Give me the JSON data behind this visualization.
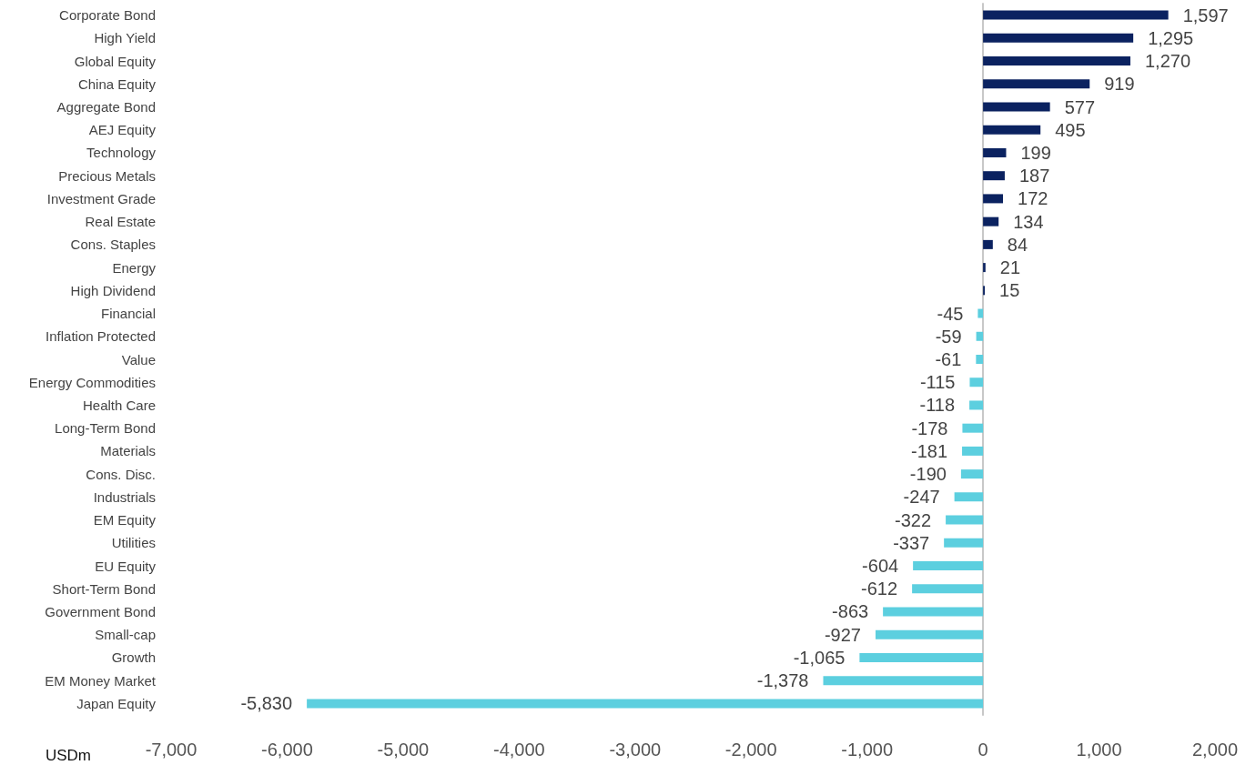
{
  "chart_data": {
    "type": "bar",
    "orientation": "horizontal",
    "xlabel": "USDm",
    "categories": [
      "Corporate Bond",
      "High Yield",
      "Global Equity",
      "China Equity",
      "Aggregate Bond",
      "AEJ Equity",
      "Technology",
      "Precious Metals",
      "Investment Grade",
      "Real Estate",
      "Cons. Staples",
      "Energy",
      "High Dividend",
      "Financial",
      "Inflation Protected",
      "Value",
      "Energy Commodities",
      "Health Care",
      "Long-Term Bond",
      "Materials",
      "Cons. Disc.",
      "Industrials",
      "EM Equity",
      "Utilities",
      "EU Equity",
      "Short-Term Bond",
      "Government Bond",
      "Small-cap",
      "Growth",
      "EM Money Market",
      "Japan Equity"
    ],
    "values": [
      1597,
      1295,
      1270,
      919,
      577,
      495,
      199,
      187,
      172,
      134,
      84,
      21,
      15,
      -45,
      -59,
      -61,
      -115,
      -118,
      -178,
      -181,
      -190,
      -247,
      -322,
      -337,
      -604,
      -612,
      -863,
      -927,
      -1065,
      -1378,
      -5830
    ],
    "value_labels": [
      "1,597",
      "1,295",
      "1,270",
      "919",
      "577",
      "495",
      "199",
      "187",
      "172",
      "134",
      "84",
      "21",
      "15",
      "-45",
      "-59",
      "-61",
      "-115",
      "-118",
      "-178",
      "-181",
      "-190",
      "-247",
      "-322",
      "-337",
      "-604",
      "-612",
      "-863",
      "-927",
      "-1,065",
      "-1,378",
      "-5,830"
    ],
    "colors": [
      "#0b2260",
      "#0b2260",
      "#0b2260",
      "#0b2260",
      "#0b2260",
      "#0b2260",
      "#0b2260",
      "#0b2260",
      "#0b2260",
      "#0b2260",
      "#0b2260",
      "#0b2260",
      "#0b2260",
      "#5ccfdf",
      "#5ccfdf",
      "#5ccfdf",
      "#5ccfdf",
      "#5ccfdf",
      "#5ccfdf",
      "#5ccfdf",
      "#5ccfdf",
      "#5ccfdf",
      "#5ccfdf",
      "#5ccfdf",
      "#5ccfdf",
      "#5ccfdf",
      "#5ccfdf",
      "#5ccfdf",
      "#5ccfdf",
      "#5ccfdf",
      "#5ccfdf"
    ],
    "xlim": [
      -7000,
      2000
    ],
    "xticks": [
      {
        "value": -7000,
        "label": "-7,000"
      },
      {
        "value": -6000,
        "label": "-6,000"
      },
      {
        "value": -5000,
        "label": "-5,000"
      },
      {
        "value": -4000,
        "label": "-4,000"
      },
      {
        "value": -3000,
        "label": "-3,000"
      },
      {
        "value": -2000,
        "label": "-2,000"
      },
      {
        "value": -1000,
        "label": "-1,000"
      },
      0,
      {
        "value": 1000,
        "label": "1,000"
      },
      {
        "value": 2000,
        "label": "2,000"
      }
    ],
    "tick_labels": true
  }
}
